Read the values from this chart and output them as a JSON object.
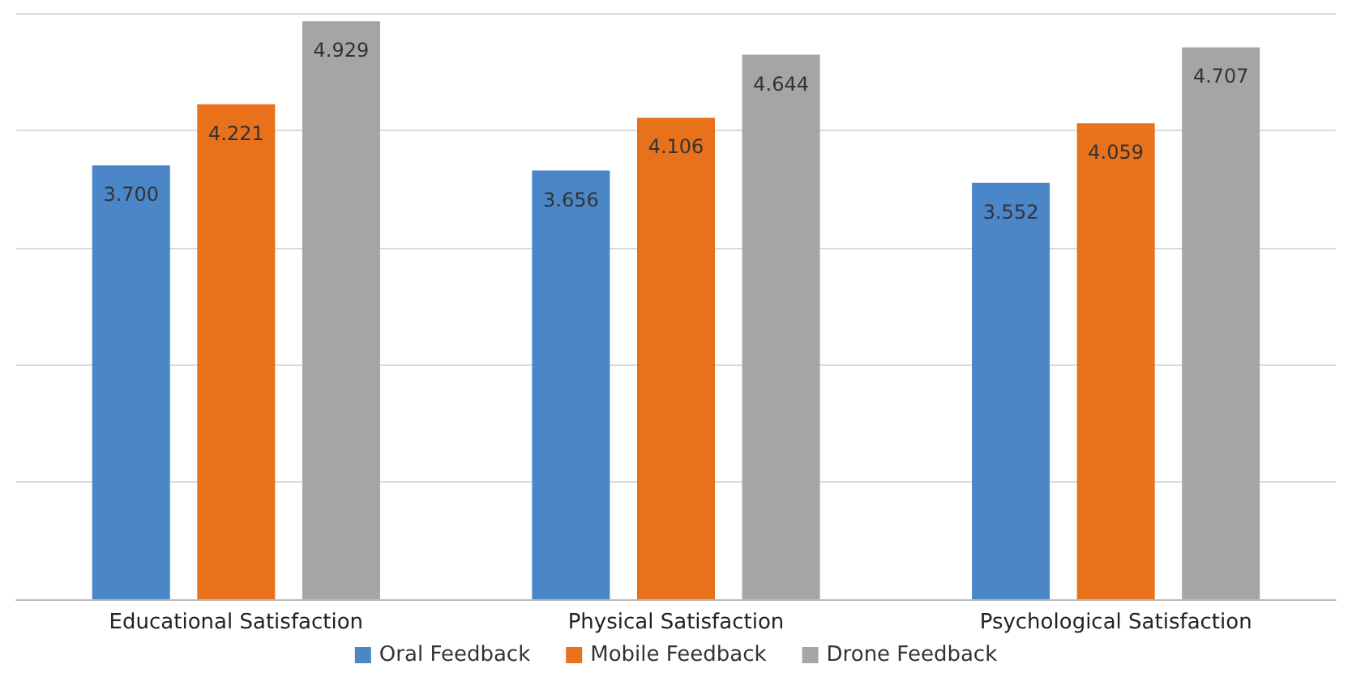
{
  "chart_data": {
    "type": "bar",
    "categories": [
      "Educational Satisfaction",
      "Physical Satisfaction",
      "Psychological Satisfaction"
    ],
    "series": [
      {
        "name": "Oral Feedback",
        "color": "#4a86c8",
        "values": [
          3.7,
          3.656,
          3.552
        ],
        "value_labels": [
          "3.700",
          "3.656",
          "3.552"
        ]
      },
      {
        "name": "Mobile Feedback",
        "color": "#e8711c",
        "values": [
          4.221,
          4.106,
          4.059
        ],
        "value_labels": [
          "4.221",
          "4.106",
          "4.059"
        ]
      },
      {
        "name": "Drone Feedback",
        "color": "#a5a5a5",
        "values": [
          4.929,
          4.644,
          4.707
        ],
        "value_labels": [
          "4.929",
          "4.644",
          "4.707"
        ]
      }
    ],
    "grid": "y",
    "legend": "bottom",
    "tick_labels": "x"
  }
}
